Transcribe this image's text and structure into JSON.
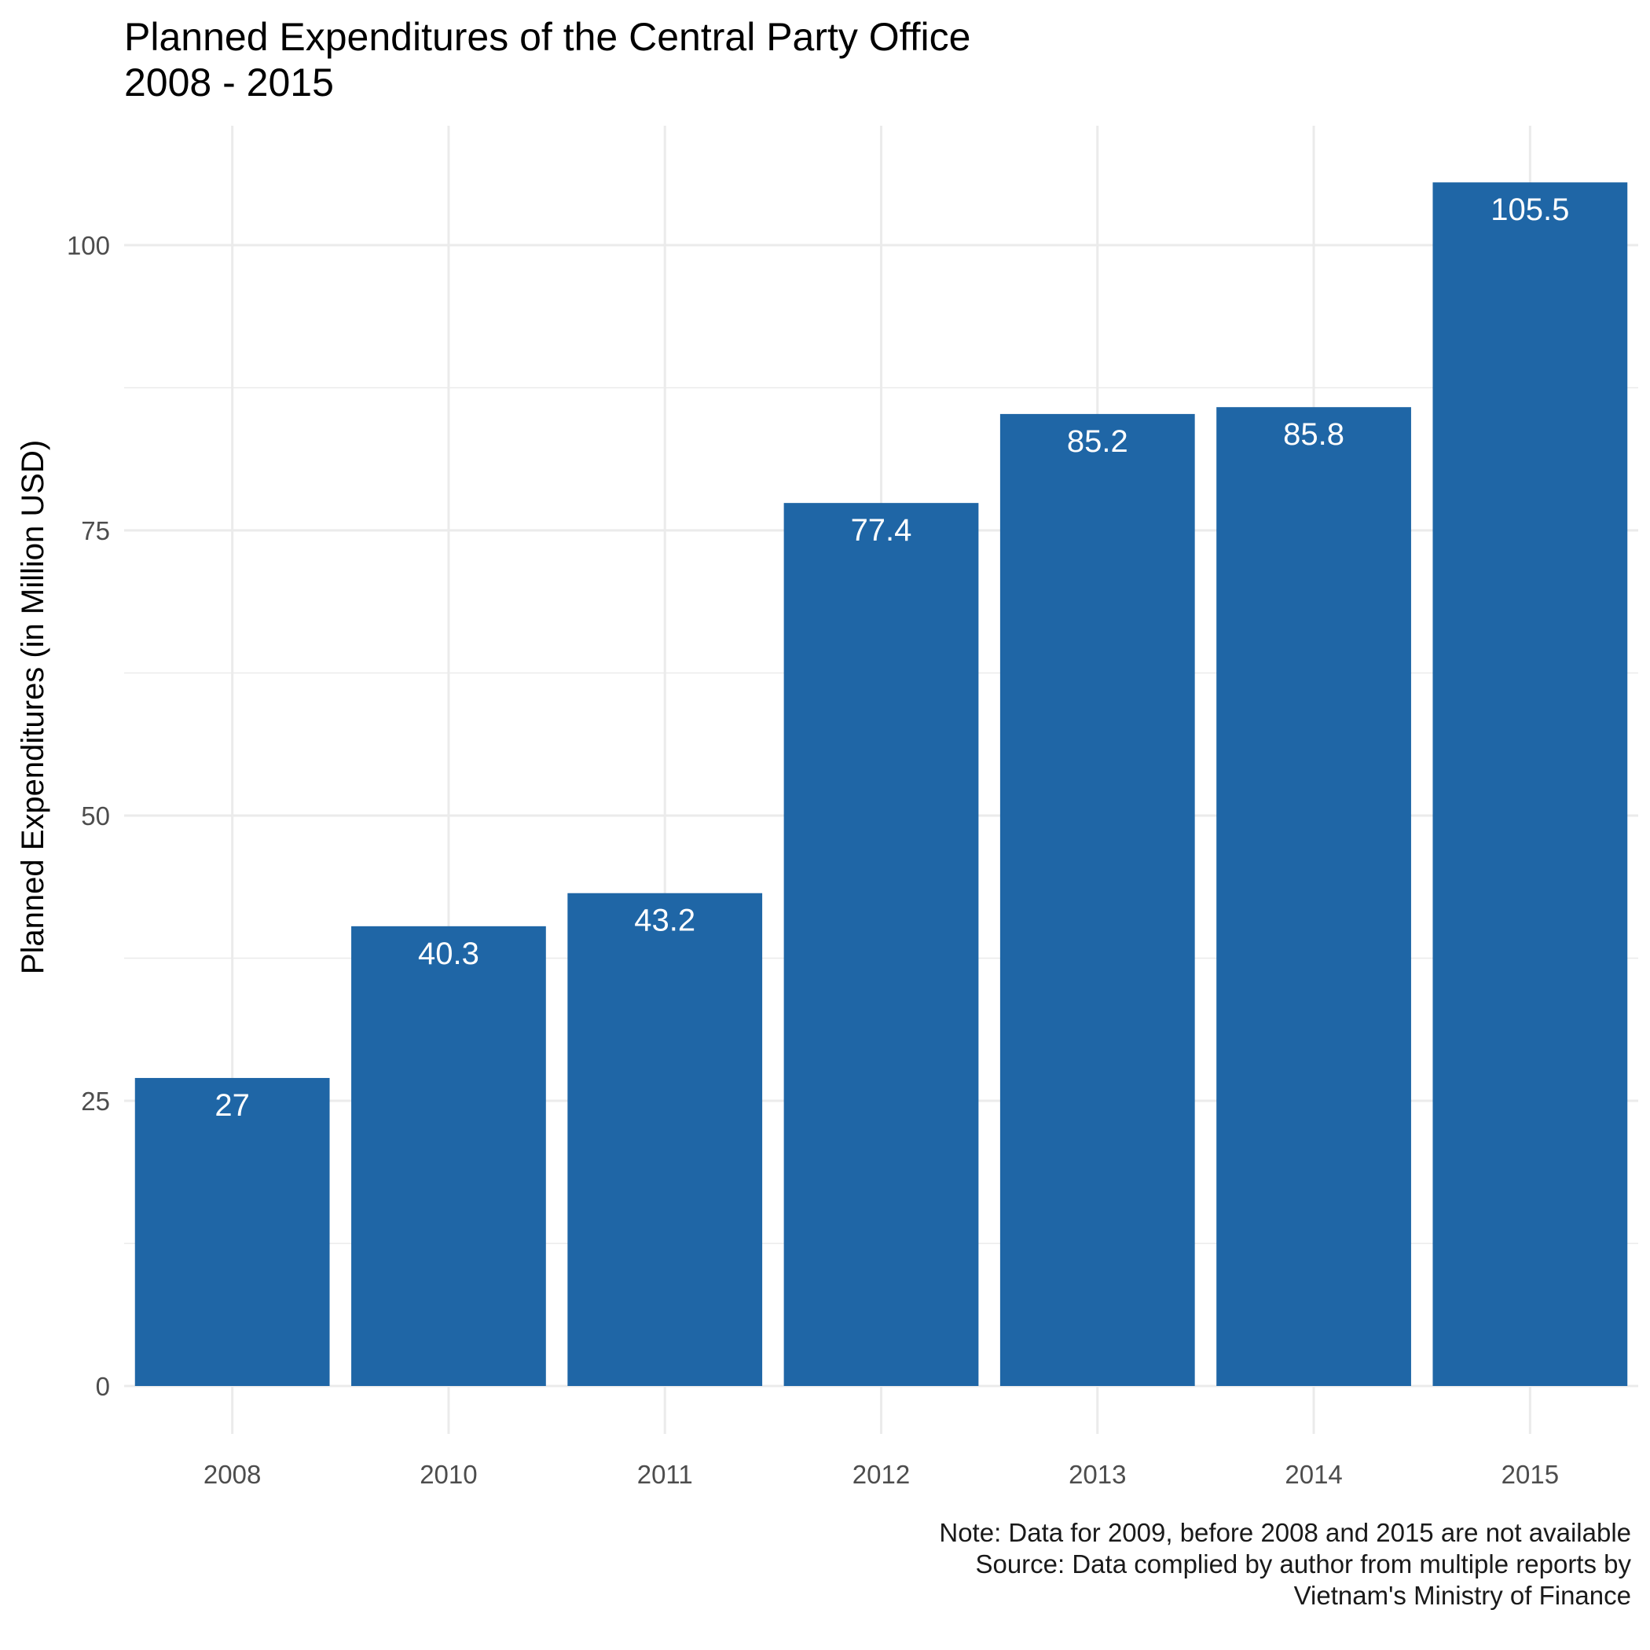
{
  "chart_data": {
    "type": "bar",
    "title": "Planned Expenditures of the Central Party Office",
    "subtitle": "2008 - 2015",
    "xlabel": "",
    "ylabel": "Planned Expenditures (in Million USD)",
    "categories": [
      "2008",
      "2010",
      "2011",
      "2012",
      "2013",
      "2014",
      "2015"
    ],
    "values": [
      27,
      40.3,
      43.2,
      77.4,
      85.2,
      85.8,
      105.5
    ],
    "value_labels": [
      "27",
      "40.3",
      "43.2",
      "77.4",
      "85.2",
      "85.8",
      "105.5"
    ],
    "ylim": [
      0,
      110
    ],
    "yticks": [
      0,
      25,
      50,
      75,
      100
    ],
    "grid": true,
    "bar_color": "#1f66a6",
    "caption": [
      "Note: Data for 2009, before 2008 and 2015 are not available",
      "Source: Data complied by author from multiple reports by",
      "Vietnam's Ministry of Finance"
    ]
  }
}
